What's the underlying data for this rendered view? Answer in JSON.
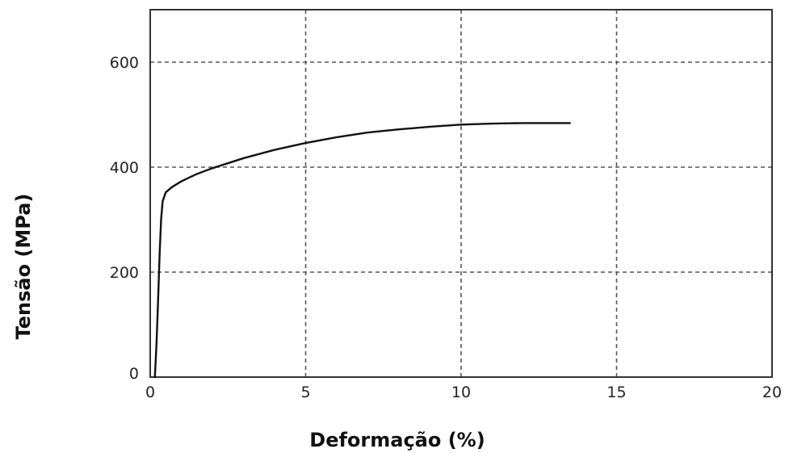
{
  "chart_data": {
    "type": "line",
    "xlabel": "Deformação (%)",
    "ylabel": "Tensão (MPa)",
    "xlim": [
      0,
      20
    ],
    "ylim": [
      0,
      700
    ],
    "xticks": [
      0,
      5,
      10,
      15,
      20
    ],
    "yticks": [
      0,
      200,
      400,
      600
    ],
    "grid": true,
    "legend": "none",
    "series": [
      {
        "x": [
          0.15,
          0.2,
          0.25,
          0.3,
          0.35,
          0.4,
          0.5,
          0.7,
          1.0,
          1.5,
          2.0,
          3.0,
          4.0,
          5.0,
          6.0,
          7.0,
          8.0,
          9.0,
          10.0,
          11.0,
          12.0,
          13.0,
          13.5
        ],
        "y": [
          0,
          60,
          140,
          230,
          300,
          335,
          352,
          362,
          373,
          387,
          398,
          417,
          433,
          446,
          457,
          466,
          472,
          477,
          481,
          483,
          484,
          484,
          484
        ]
      }
    ]
  }
}
